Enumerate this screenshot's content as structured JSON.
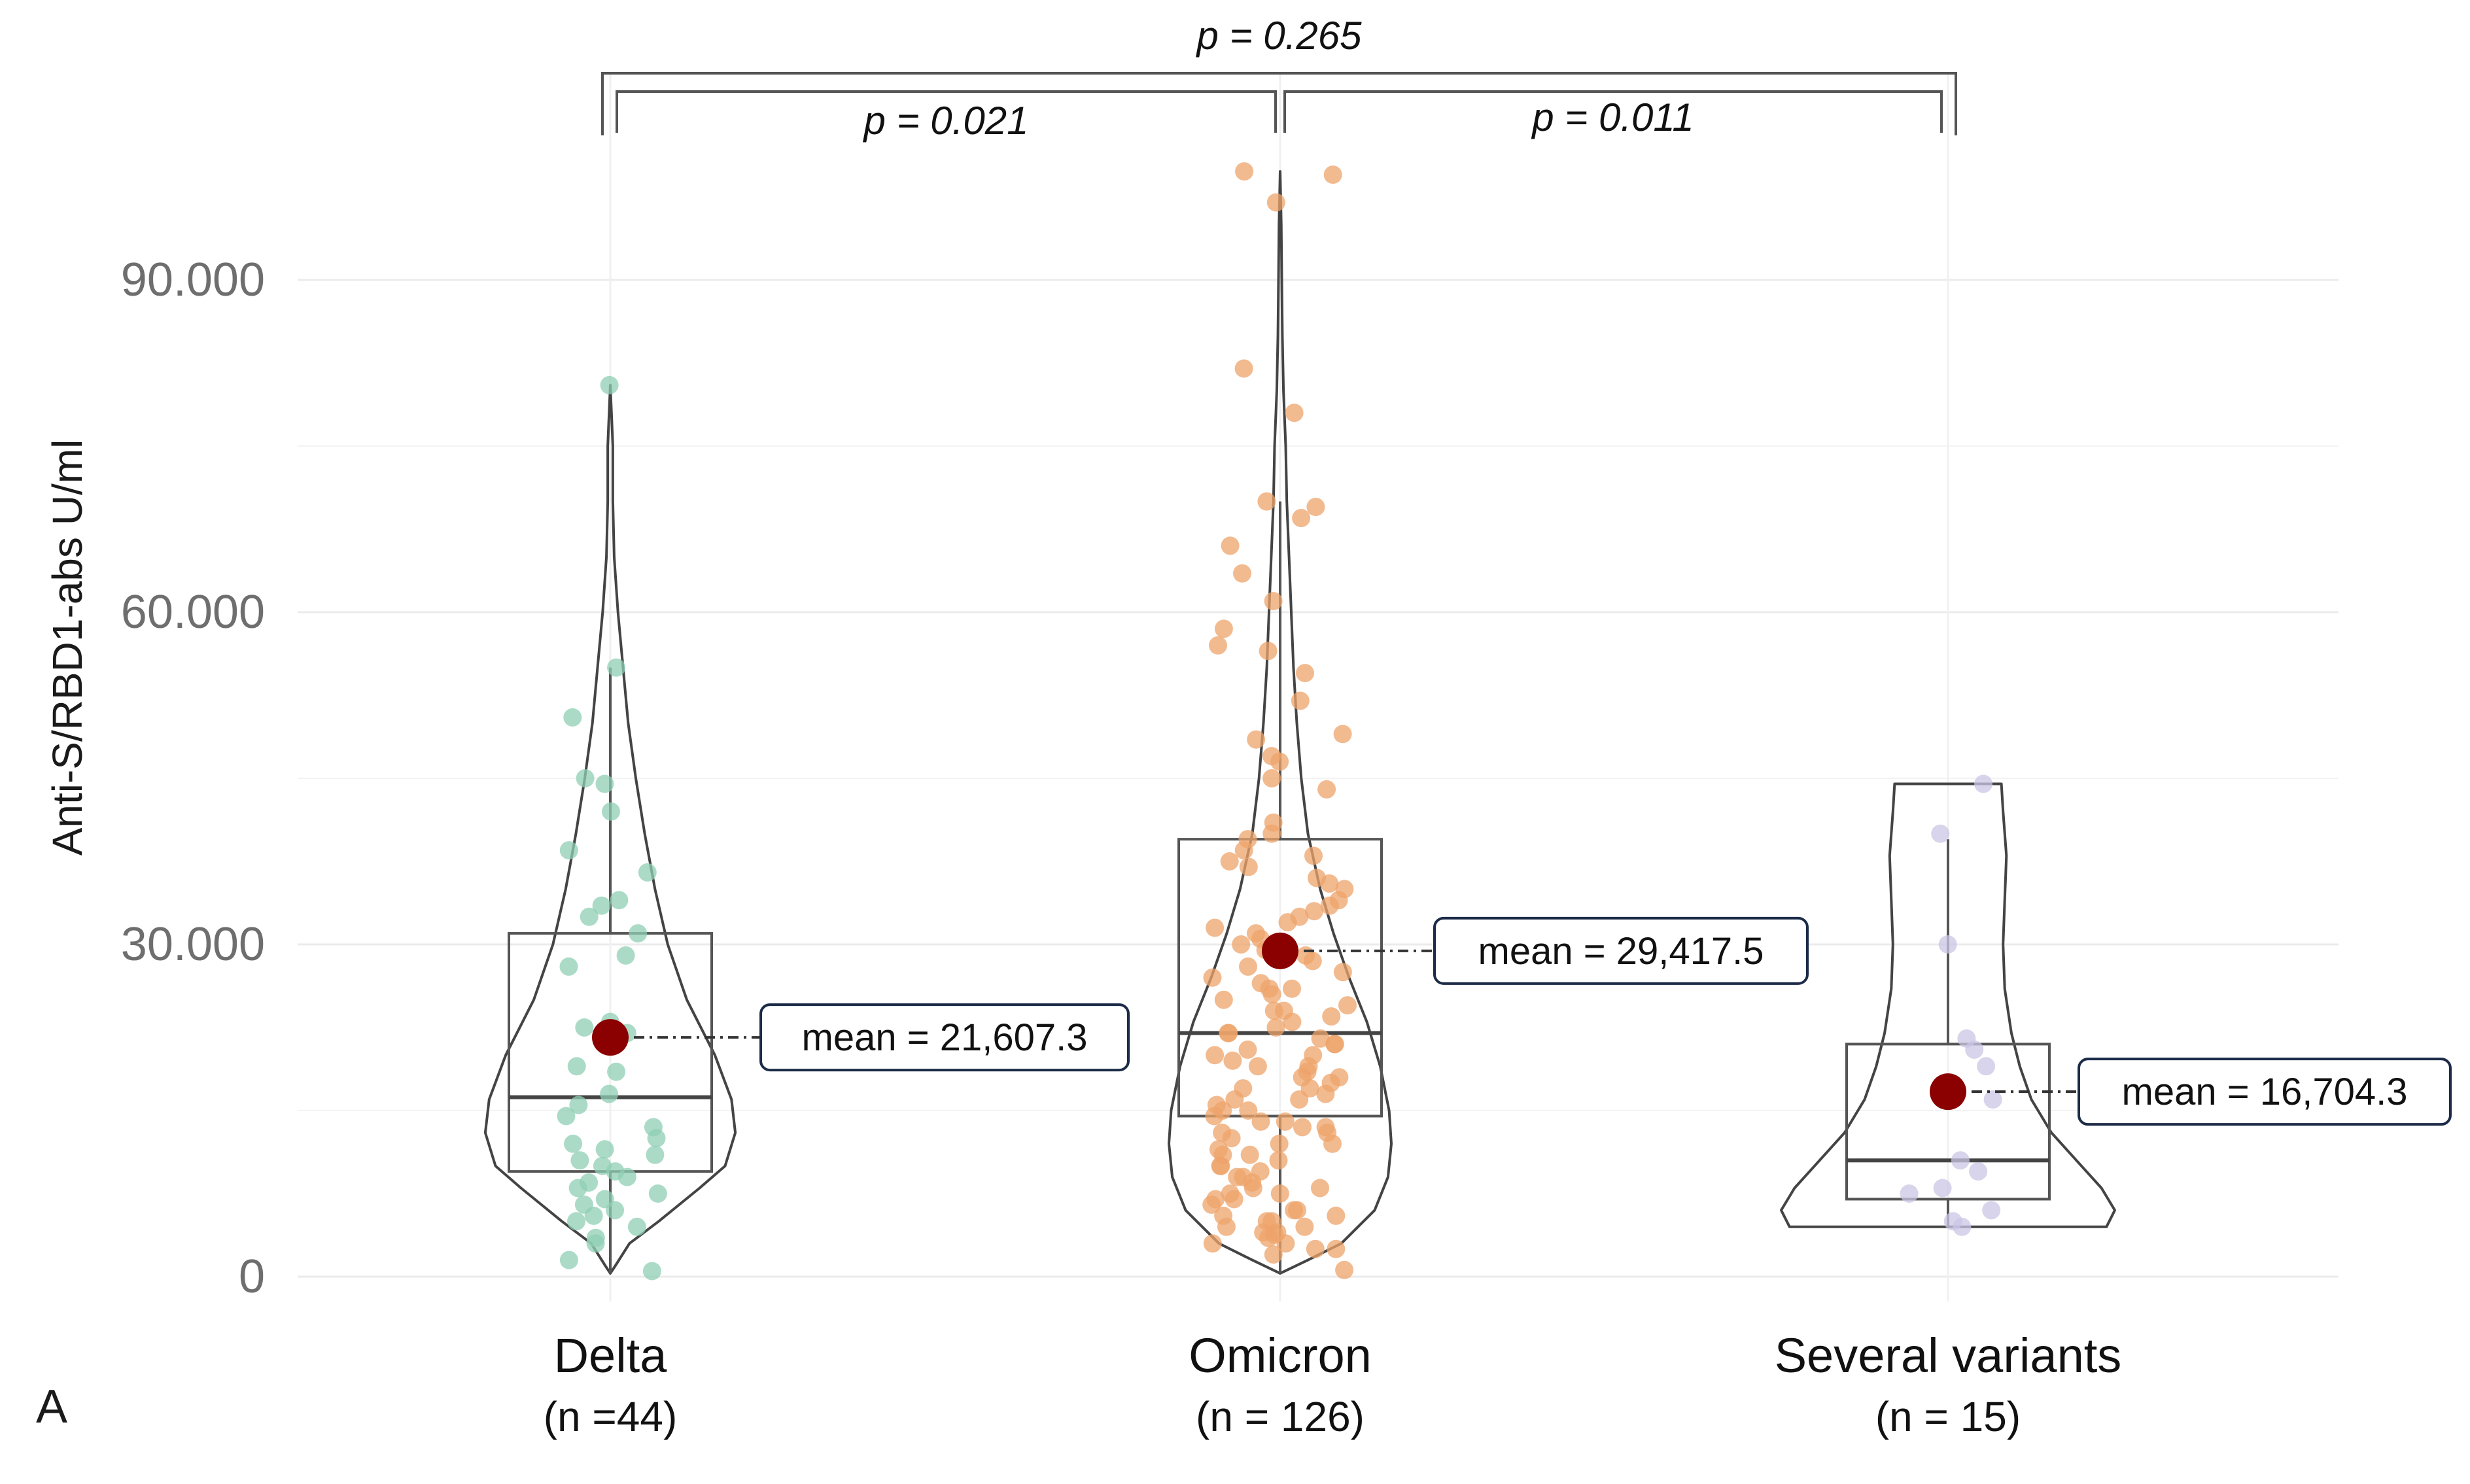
{
  "panel_label": "A",
  "chart_data": {
    "type": "violin-box-jitter",
    "ylabel": "Anti-S/RBD1-abs U/ml",
    "ylim": [
      0,
      100000
    ],
    "yticks": [
      {
        "value": 0,
        "label": "0"
      },
      {
        "value": 30000,
        "label": "30.000"
      },
      {
        "value": 60000,
        "label": "60.000"
      },
      {
        "value": 90000,
        "label": "90.000"
      }
    ],
    "grid": true,
    "colors": {
      "delta": "#8fcfb4",
      "omicron": "#eda36a",
      "several": "#c9c6e4",
      "mean_dot": "#8b0000",
      "outline": "#444444",
      "grid": "#ebebeb",
      "tick_text": "#6e6e6e"
    },
    "groups": [
      {
        "key": "delta",
        "name": "Delta",
        "n_label": "(n =44)",
        "mean": 21607.3,
        "mean_label": "mean = 21,607.3",
        "box": {
          "whisker_low": 300,
          "q1": 9500,
          "median": 16200,
          "q3": 31000,
          "whisker_high": 55000
        },
        "violin_range": [
          300,
          80500
        ],
        "violin_width": [
          [
            300,
            0.0
          ],
          [
            1000,
            0.04
          ],
          [
            3000,
            0.15
          ],
          [
            5000,
            0.38
          ],
          [
            8000,
            0.7
          ],
          [
            10000,
            0.9
          ],
          [
            13000,
            0.98
          ],
          [
            16000,
            0.95
          ],
          [
            20000,
            0.82
          ],
          [
            25000,
            0.6
          ],
          [
            30000,
            0.45
          ],
          [
            35000,
            0.35
          ],
          [
            40000,
            0.27
          ],
          [
            45000,
            0.2
          ],
          [
            50000,
            0.14
          ],
          [
            55000,
            0.1
          ],
          [
            60000,
            0.06
          ],
          [
            65000,
            0.03
          ],
          [
            70000,
            0.02
          ],
          [
            75000,
            0.02
          ],
          [
            80500,
            0.0
          ]
        ],
        "points": [
          80500,
          55000,
          50500,
          45000,
          44500,
          42000,
          38500,
          36500,
          34000,
          33500,
          32500,
          31000,
          29000,
          28000,
          23000,
          22500,
          22000,
          19000,
          18500,
          16500,
          15500,
          14500,
          13500,
          12500,
          12000,
          11500,
          11000,
          10500,
          10000,
          9500,
          9000,
          8500,
          8000,
          7500,
          7000,
          6500,
          6000,
          5500,
          5000,
          4500,
          3500,
          3000,
          1500,
          500
        ]
      },
      {
        "key": "omicron",
        "name": "Omicron",
        "n_label": "(n = 126)",
        "mean": 29417.5,
        "mean_label": "mean = 29,417.5",
        "box": {
          "whisker_low": 300,
          "q1": 14500,
          "median": 22000,
          "q3": 39500,
          "whisker_high": 70000
        },
        "violin_range": [
          300,
          99800
        ],
        "violin_width": [
          [
            300,
            0.0
          ],
          [
            1500,
            0.25
          ],
          [
            3000,
            0.55
          ],
          [
            6000,
            0.85
          ],
          [
            9000,
            0.97
          ],
          [
            12000,
            1.0
          ],
          [
            15000,
            0.98
          ],
          [
            19000,
            0.9
          ],
          [
            23000,
            0.78
          ],
          [
            27000,
            0.62
          ],
          [
            31000,
            0.48
          ],
          [
            35000,
            0.36
          ],
          [
            40000,
            0.25
          ],
          [
            45000,
            0.19
          ],
          [
            50000,
            0.15
          ],
          [
            55000,
            0.12
          ],
          [
            60000,
            0.1
          ],
          [
            65000,
            0.08
          ],
          [
            70000,
            0.06
          ],
          [
            75000,
            0.05
          ],
          [
            80000,
            0.03
          ],
          [
            85000,
            0.02
          ],
          [
            90000,
            0.015
          ],
          [
            95000,
            0.01
          ],
          [
            99800,
            0.0
          ]
        ],
        "points": [
          99800,
          99500,
          97000,
          82000,
          78000,
          70000,
          69500,
          68500,
          66000,
          63500,
          61000,
          58500,
          57000,
          56500,
          54500,
          52000,
          49000,
          48500,
          47000,
          46500,
          45000,
          44000,
          41000,
          40000,
          39500,
          38500,
          38000,
          37500,
          37000,
          36000,
          35500,
          35000,
          34000,
          33500,
          33000,
          32500,
          32000,
          31500,
          31000,
          30500,
          30000,
          29500,
          29000,
          28500,
          28000,
          27500,
          27000,
          26500,
          26000,
          25500,
          25000,
          24500,
          24000,
          23500,
          23000,
          22500,
          22000,
          21500,
          21000,
          20500,
          20000,
          19500,
          19000,
          18500,
          18000,
          17500,
          17000,
          16500,
          16000,
          15500,
          15000,
          14500,
          14000,
          13500,
          13000,
          12500,
          12000,
          11500,
          11000,
          10500,
          10000,
          9500,
          9000,
          8500,
          8000,
          7500,
          7000,
          6500,
          6000,
          5500,
          5000,
          4500,
          4000,
          3500,
          3000,
          2500,
          2000,
          20000,
          19000,
          18000,
          17000,
          16000,
          15000,
          14000,
          13000,
          12000,
          11000,
          10000,
          9000,
          8000,
          7000,
          6000,
          5000,
          4000,
          3000,
          2500,
          24000,
          26000,
          22000,
          21000,
          13500,
          7500,
          5500,
          4500,
          3800,
          600
        ]
      },
      {
        "key": "several",
        "name": "Several variants",
        "n_label": "(n = 15)",
        "mean": 16704.3,
        "mean_label": "mean = 16,704.3",
        "box": {
          "whisker_low": 4500,
          "q1": 7000,
          "median": 10500,
          "q3": 21000,
          "whisker_high": 39500
        },
        "violin_range": [
          4500,
          44500
        ],
        "violin_width": [
          [
            4500,
            0.95
          ],
          [
            6000,
            1.0
          ],
          [
            8000,
            0.92
          ],
          [
            10000,
            0.8
          ],
          [
            13000,
            0.62
          ],
          [
            16000,
            0.5
          ],
          [
            19000,
            0.43
          ],
          [
            22000,
            0.38
          ],
          [
            26000,
            0.34
          ],
          [
            30000,
            0.33
          ],
          [
            34000,
            0.34
          ],
          [
            38000,
            0.35
          ],
          [
            42000,
            0.33
          ],
          [
            44500,
            0.32
          ]
        ],
        "points": [
          44500,
          40000,
          30000,
          21500,
          20500,
          19000,
          17000,
          16000,
          10500,
          9500,
          8000,
          7500,
          6000,
          5000,
          4500
        ]
      }
    ],
    "comparisons": [
      {
        "groups": [
          "delta",
          "omicron"
        ],
        "label": "p = 0.021"
      },
      {
        "groups": [
          "omicron",
          "several"
        ],
        "label": "p = 0.011"
      },
      {
        "groups": [
          "delta",
          "several"
        ],
        "label": "p = 0.265"
      }
    ]
  }
}
